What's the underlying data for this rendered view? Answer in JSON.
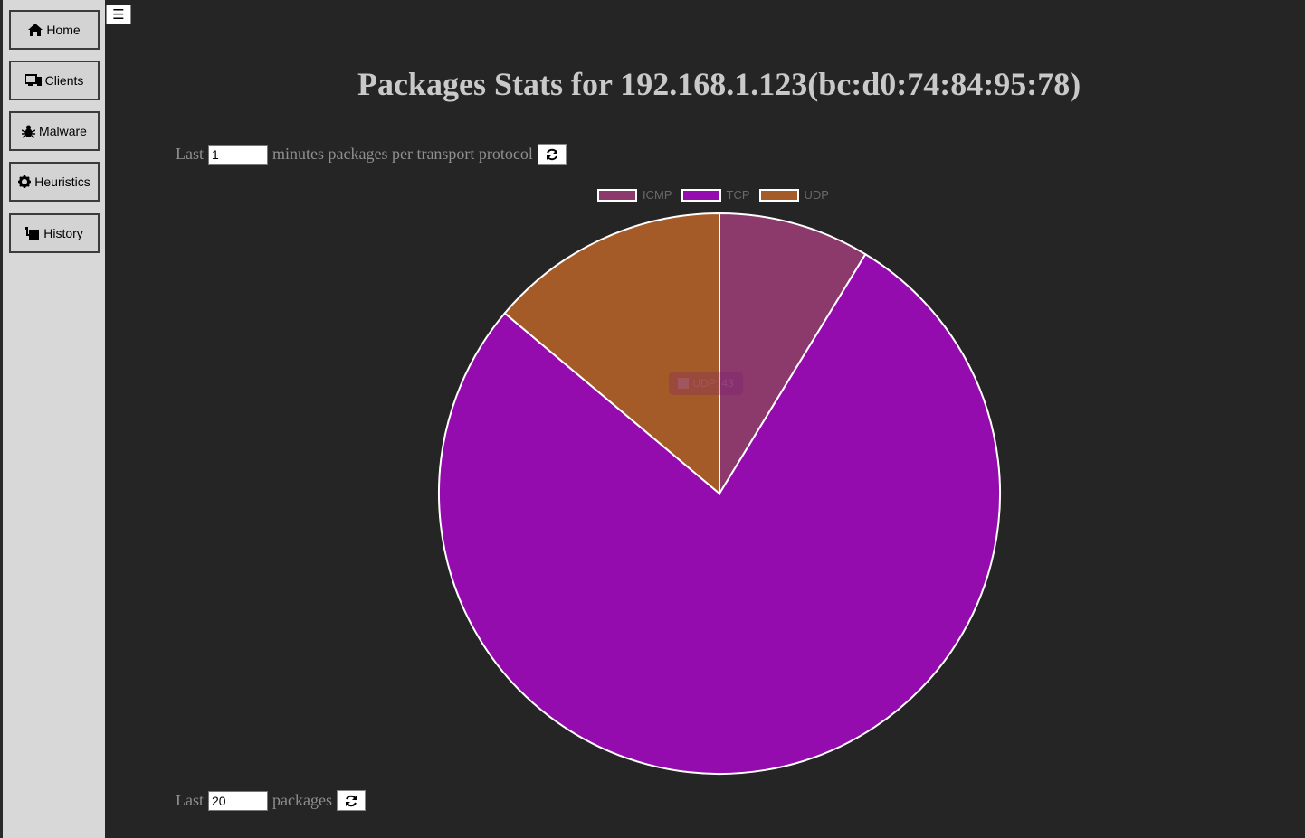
{
  "sidebar": {
    "items": [
      {
        "label": "Home",
        "icon": "home-icon"
      },
      {
        "label": "Clients",
        "icon": "devices-icon"
      },
      {
        "label": "Malware",
        "icon": "bug-icon"
      },
      {
        "label": "Heuristics",
        "icon": "gear-icon"
      },
      {
        "label": "History",
        "icon": "history-icon"
      }
    ],
    "menu_toggle_label": "☰"
  },
  "page": {
    "title": "Packages Stats for 192.168.1.123(bc:d0:74:84:95:78)"
  },
  "controls": {
    "minutes": {
      "prefix": "Last",
      "value": "1",
      "suffix": "minutes packages per transport protocol"
    },
    "packages": {
      "prefix": "Last",
      "value": "20",
      "suffix": "packages"
    }
  },
  "tooltip_text": "UDP: 43",
  "chart_data": {
    "type": "pie",
    "title": "",
    "labels": [
      "ICMP",
      "TCP",
      "UDP"
    ],
    "values": [
      27,
      240,
      43
    ],
    "colors": [
      "#8b3a6b",
      "#940cae",
      "#a55b27"
    ],
    "legend": "top",
    "start_angle": "top",
    "direction": "clockwise"
  }
}
